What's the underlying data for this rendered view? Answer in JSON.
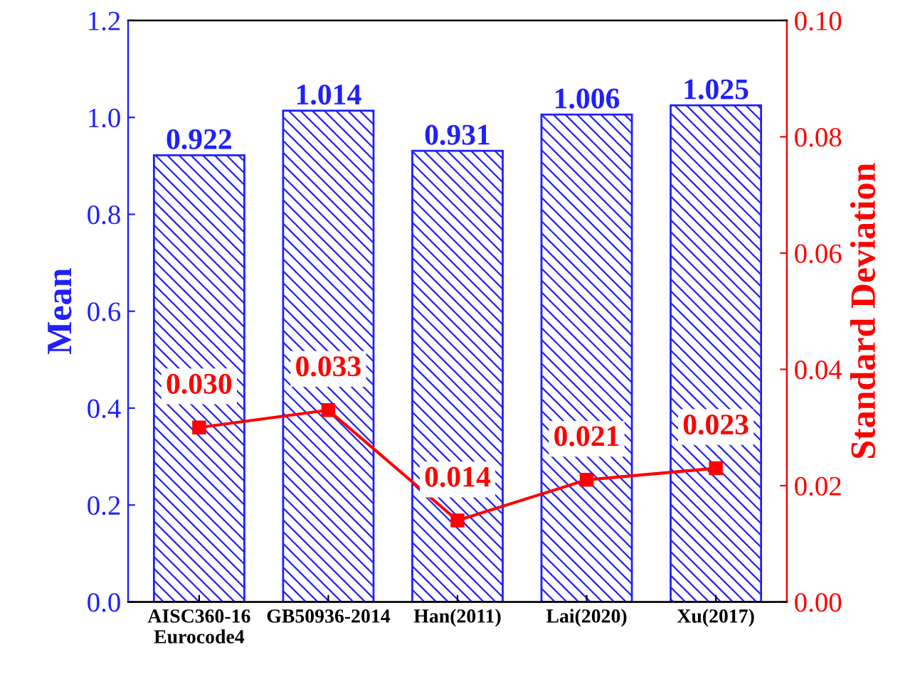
{
  "chart_data": {
    "type": "bar",
    "ylabel": "Mean",
    "y2label": "Standard Deviation",
    "categories": [
      "AISC360-16\nEurocode4",
      "GB50936-2014",
      "Han(2011)",
      "Lai(2020)",
      "Xu(2017)"
    ],
    "series": [
      {
        "name": null,
        "color": "#1f1fff",
        "values": [
          0.922,
          1.014,
          0.931,
          1.006,
          1.025
        ],
        "value_labels": [
          "0.922",
          "1.014",
          "0.931",
          "1.006",
          "1.025"
        ]
      },
      {
        "name": null,
        "type": "line",
        "axis": "y2",
        "color": "#ff0000",
        "marker": "square",
        "values": [
          0.03,
          0.033,
          0.014,
          0.021,
          0.023
        ],
        "value_labels": [
          "0.030",
          "0.033",
          "0.014",
          "0.021",
          "0.023"
        ]
      }
    ],
    "ylim": [
      0,
      1.2
    ],
    "yticks": [
      {
        "value": 0,
        "label": "0.0"
      },
      0.2,
      0.4,
      0.6,
      0.8,
      {
        "value": 1,
        "label": "1.0"
      },
      1.2
    ],
    "y2lim": [
      0,
      0.1
    ],
    "y2ticks": [
      {
        "value": 0,
        "label": "0.00"
      },
      0.02,
      0.04,
      0.06,
      0.08,
      {
        "value": 0.1,
        "label": "0.10"
      }
    ],
    "grid": false
  }
}
